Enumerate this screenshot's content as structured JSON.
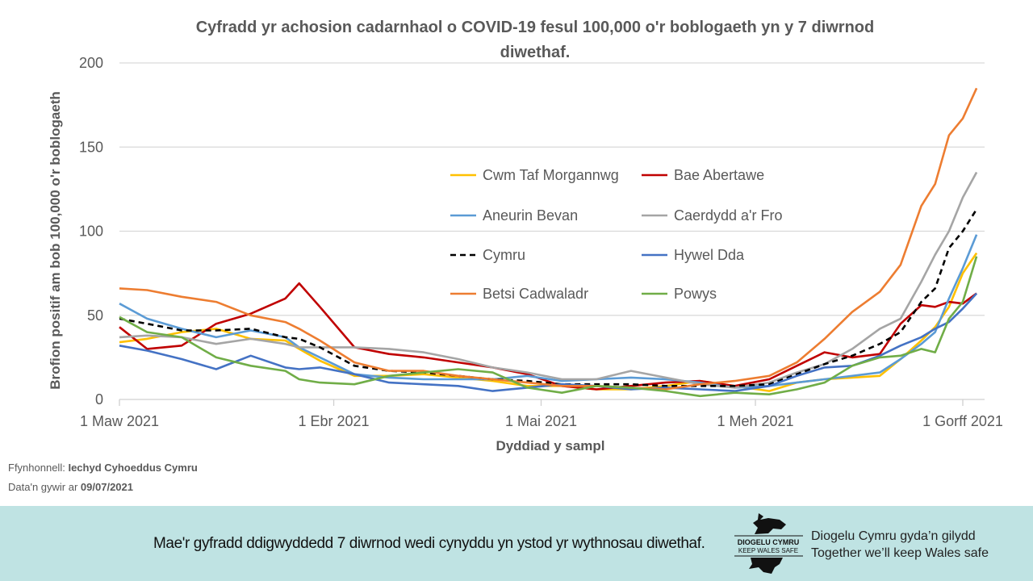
{
  "chart_data": {
    "type": "line",
    "title": "Cyfradd yr achosion cadarnhaol o COVID-19 fesul 100,000 o'r boblogaeth yn y 7 diwrnod diwethaf.",
    "title_lines": [
      "Cyfradd yr achosion cadarnhaol o COVID-19 fesul 100,000 o'r boblogaeth yn y 7 diwrnod",
      "diwethaf."
    ],
    "xlabel": "Dyddiad  y sampl",
    "ylabel": "Brofion positif  am bob 100,000 o'r boblogaeth",
    "ylim": [
      0,
      200
    ],
    "yticks": [
      0,
      50,
      100,
      150,
      200
    ],
    "xticks": [
      {
        "date": "2021-03-01",
        "label": "1 Maw 2021"
      },
      {
        "date": "2021-04-01",
        "label": "1 Ebr 2021"
      },
      {
        "date": "2021-05-01",
        "label": "1 Mai 2021"
      },
      {
        "date": "2021-06-01",
        "label": "1 Meh 2021"
      },
      {
        "date": "2021-07-01",
        "label": "1 Gorff 2021"
      }
    ],
    "grid": true,
    "legend_placement": "center",
    "x": [
      "2021-03-01",
      "2021-03-05",
      "2021-03-10",
      "2021-03-15",
      "2021-03-20",
      "2021-03-25",
      "2021-03-27",
      "2021-03-30",
      "2021-04-04",
      "2021-04-09",
      "2021-04-14",
      "2021-04-19",
      "2021-04-24",
      "2021-04-29",
      "2021-05-04",
      "2021-05-09",
      "2021-05-14",
      "2021-05-19",
      "2021-05-24",
      "2021-05-29",
      "2021-06-03",
      "2021-06-07",
      "2021-06-11",
      "2021-06-15",
      "2021-06-19",
      "2021-06-22",
      "2021-06-25",
      "2021-06-27",
      "2021-06-29",
      "2021-07-01",
      "2021-07-03"
    ],
    "series": [
      {
        "name": "Cwm Taf Morgannwg",
        "color": "#FFC000",
        "dashed": false,
        "values": [
          34,
          36,
          40,
          42,
          36,
          35,
          30,
          23,
          14,
          14,
          15,
          13,
          11,
          8,
          8,
          6,
          6,
          8,
          11,
          8,
          5,
          10,
          12,
          13,
          14,
          24,
          35,
          43,
          55,
          75,
          87
        ]
      },
      {
        "name": "Bae Abertawe",
        "color": "#C00000",
        "dashed": false,
        "values": [
          43,
          30,
          32,
          45,
          51,
          60,
          69,
          55,
          31,
          27,
          25,
          22,
          19,
          15,
          8,
          6,
          8,
          10,
          11,
          8,
          12,
          20,
          28,
          25,
          27,
          45,
          56,
          55,
          58,
          57,
          63
        ]
      },
      {
        "name": "Aneurin Bevan",
        "color": "#5B9BD5",
        "dashed": false,
        "values": [
          57,
          48,
          42,
          37,
          41,
          37,
          31,
          25,
          15,
          13,
          12,
          12,
          12,
          14,
          11,
          12,
          13,
          12,
          10,
          7,
          8,
          10,
          12,
          14,
          16,
          24,
          33,
          40,
          60,
          78,
          98
        ]
      },
      {
        "name": "Caerdydd a'r Fro",
        "color": "#A5A5A5",
        "dashed": false,
        "values": [
          37,
          38,
          37,
          33,
          36,
          33,
          31,
          31,
          31,
          30,
          28,
          24,
          19,
          16,
          12,
          12,
          17,
          13,
          9,
          7,
          10,
          16,
          21,
          30,
          42,
          48,
          70,
          86,
          100,
          120,
          135
        ]
      },
      {
        "name": "Cymru",
        "color": "#000000",
        "dashed": true,
        "values": [
          48,
          45,
          41,
          41,
          42,
          37,
          36,
          31,
          20,
          17,
          16,
          14,
          12,
          11,
          9,
          9,
          9,
          8,
          8,
          8,
          9,
          15,
          21,
          26,
          33,
          40,
          58,
          66,
          90,
          100,
          113
        ]
      },
      {
        "name": "Hywel Dda",
        "color": "#4472C4",
        "dashed": false,
        "values": [
          32,
          29,
          24,
          18,
          26,
          19,
          18,
          19,
          15,
          10,
          9,
          8,
          5,
          7,
          9,
          8,
          6,
          7,
          6,
          5,
          8,
          14,
          19,
          20,
          26,
          32,
          37,
          42,
          46,
          54,
          63
        ]
      },
      {
        "name": "Betsi Cadwaladr",
        "color": "#ED7D31",
        "dashed": false,
        "values": [
          66,
          65,
          61,
          58,
          50,
          46,
          42,
          35,
          22,
          17,
          17,
          14,
          12,
          10,
          8,
          8,
          7,
          6,
          9,
          11,
          14,
          22,
          36,
          52,
          64,
          80,
          115,
          128,
          157,
          167,
          185
        ]
      },
      {
        "name": "Powys",
        "color": "#70AD47",
        "dashed": false,
        "values": [
          49,
          40,
          37,
          25,
          20,
          17,
          12,
          10,
          9,
          14,
          16,
          18,
          16,
          7,
          4,
          8,
          7,
          5,
          2,
          4,
          3,
          6,
          10,
          20,
          25,
          26,
          30,
          28,
          48,
          58,
          85
        ]
      }
    ]
  },
  "source": {
    "label": "Ffynhonnell:",
    "value": "Iechyd Cyhoeddus Cymru"
  },
  "data_date": {
    "label": "Data'n gywir ar",
    "value": "09/07/2021"
  },
  "footer": {
    "message": "Mae'r gyfradd ddigwyddedd 7 diwrnod wedi cynyddu yn ystod yr wythnosau diwethaf.",
    "logo_text": [
      "DIOGELU CYMRU",
      "KEEP WALES SAFE"
    ],
    "tagline": [
      "Diogelu Cymru gyda’n gilydd",
      "Together we’ll keep Wales safe"
    ]
  }
}
